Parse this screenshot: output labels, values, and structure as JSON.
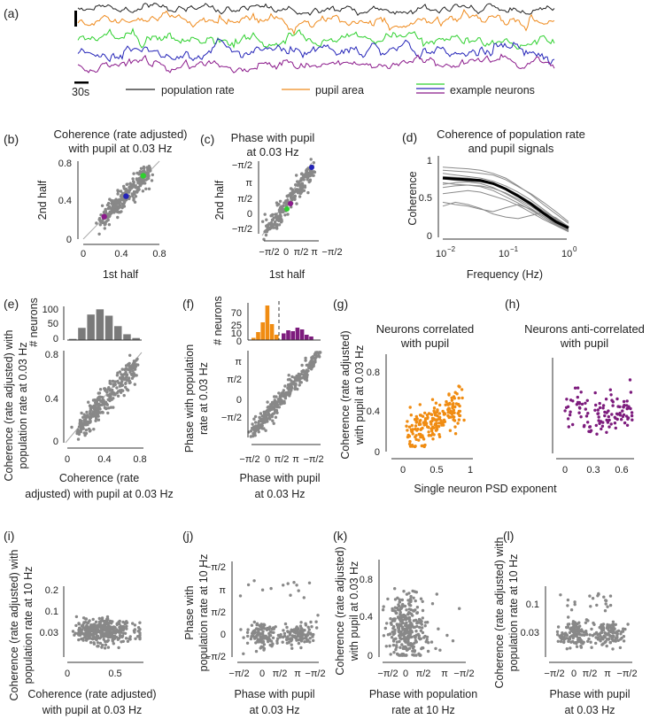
{
  "colors": {
    "population": "#222222",
    "pupil": "#ef8a1c",
    "neuron_green": "#2ed02e",
    "neuron_blue": "#2424b8",
    "neuron_purple": "#8b1a8b",
    "gray": "#888888",
    "orange": "#f08c12",
    "purple": "#7d1c7d"
  },
  "panel_a": {
    "label": "(a)",
    "scale_label": "30s",
    "legend": [
      "population rate",
      "pupil area",
      "example neurons"
    ]
  },
  "chart_data": [
    {
      "panel": "(b)",
      "type": "scatter",
      "title": [
        "Coherence (rate adjusted)",
        "with pupil at 0.03 Hz"
      ],
      "xlabel": "1st half",
      "ylabel": "2nd half",
      "xlim": [
        0,
        0.8
      ],
      "ylim": [
        0,
        0.8
      ],
      "xticks": [
        0,
        0.4,
        0.8
      ],
      "yticks": [
        0,
        0.4,
        0.8
      ],
      "highlights": [
        {
          "name": "green neuron",
          "x": 0.63,
          "y": 0.65
        },
        {
          "name": "blue neuron",
          "x": 0.45,
          "y": 0.44
        },
        {
          "name": "purple neuron",
          "x": 0.22,
          "y": 0.23
        }
      ]
    },
    {
      "panel": "(c)",
      "type": "scatter",
      "title": [
        "Phase with pupil",
        "at 0.03 Hz"
      ],
      "xlabel": "1st half",
      "ylabel": "2nd half",
      "xticks": [
        "−π/2",
        "0",
        "π/2",
        "π",
        "−π/2"
      ],
      "yticks": [
        "−π/2",
        "0",
        "π/2",
        "π",
        "−π/2"
      ],
      "xlim": [
        -1.571,
        4.712
      ],
      "ylim": [
        -1.571,
        4.712
      ]
    },
    {
      "panel": "(d)",
      "type": "line",
      "title": [
        "Coherence of population rate",
        "and pupil signals"
      ],
      "xlabel": "Frequency (Hz)",
      "ylabel": "Coherence",
      "xscale": "log",
      "xlim": [
        0.01,
        1
      ],
      "ylim": [
        0,
        1
      ],
      "xticks": [
        "10",
        "10",
        "10"
      ],
      "xtick_exponents": [
        "−2",
        "−1",
        "0"
      ],
      "yticks": [
        "0",
        "0.5",
        "1"
      ],
      "x": [
        0.01,
        0.0158,
        0.0251,
        0.0398,
        0.0631,
        0.1,
        0.158,
        0.251,
        0.398,
        0.631,
        1.0
      ],
      "mean": [
        0.76,
        0.75,
        0.74,
        0.73,
        0.69,
        0.62,
        0.53,
        0.43,
        0.31,
        0.2,
        0.12
      ],
      "series": [
        {
          "name": "s1",
          "values": [
            0.9,
            0.89,
            0.88,
            0.86,
            0.82,
            0.76,
            0.66,
            0.55,
            0.42,
            0.3,
            0.18
          ]
        },
        {
          "name": "s2",
          "values": [
            0.86,
            0.85,
            0.84,
            0.82,
            0.8,
            0.74,
            0.65,
            0.56,
            0.45,
            0.33,
            0.2
          ]
        },
        {
          "name": "s3",
          "values": [
            0.82,
            0.8,
            0.78,
            0.76,
            0.72,
            0.66,
            0.58,
            0.48,
            0.36,
            0.24,
            0.14
          ]
        },
        {
          "name": "s4",
          "values": [
            0.78,
            0.77,
            0.76,
            0.74,
            0.7,
            0.63,
            0.55,
            0.45,
            0.34,
            0.23,
            0.13
          ]
        },
        {
          "name": "s5",
          "values": [
            0.75,
            0.73,
            0.72,
            0.71,
            0.68,
            0.62,
            0.53,
            0.42,
            0.3,
            0.19,
            0.1
          ]
        },
        {
          "name": "s6",
          "values": [
            0.7,
            0.68,
            0.67,
            0.66,
            0.63,
            0.57,
            0.49,
            0.4,
            0.29,
            0.18,
            0.09
          ]
        },
        {
          "name": "s7",
          "values": [
            0.68,
            0.7,
            0.71,
            0.69,
            0.64,
            0.56,
            0.47,
            0.37,
            0.27,
            0.17,
            0.08
          ]
        },
        {
          "name": "s8",
          "values": [
            0.64,
            0.66,
            0.67,
            0.65,
            0.6,
            0.52,
            0.44,
            0.35,
            0.25,
            0.16,
            0.08
          ]
        },
        {
          "name": "s9",
          "values": [
            0.56,
            0.58,
            0.6,
            0.58,
            0.53,
            0.48,
            0.41,
            0.32,
            0.23,
            0.15,
            0.07
          ]
        },
        {
          "name": "s10",
          "values": [
            0.45,
            0.42,
            0.4,
            0.36,
            0.33,
            0.38,
            0.42,
            0.36,
            0.27,
            0.17,
            0.08
          ]
        },
        {
          "name": "s11",
          "values": [
            0.4,
            0.45,
            0.42,
            0.37,
            0.3,
            0.26,
            0.24,
            0.28,
            0.32,
            0.25,
            0.14
          ]
        }
      ]
    },
    {
      "panel": "(e)",
      "type": "scatter",
      "xlabel": [
        "Coherence (rate",
        "adjusted) with pupil at 0.03 Hz"
      ],
      "ylabel": [
        "Coherence (rate adjusted) with",
        "population rate at 0.03 Hz"
      ],
      "xlim": [
        0,
        0.8
      ],
      "ylim": [
        0,
        0.8
      ],
      "xticks": [
        0,
        0.4,
        0.8
      ],
      "yticks": [
        0,
        0.4,
        0.8
      ],
      "histogram": {
        "ylabel": "# neurons",
        "yticks": [
          0,
          50,
          100
        ],
        "bins": [
          0.05,
          0.15,
          0.25,
          0.35,
          0.45,
          0.55,
          0.65,
          0.75
        ],
        "counts": [
          4,
          42,
          88,
          106,
          84,
          48,
          20,
          7
        ]
      }
    },
    {
      "panel": "(f)",
      "type": "scatter",
      "xlabel": [
        "Phase with pupil",
        "at 0.03 Hz"
      ],
      "ylabel": [
        "Phase with population",
        "rate at 0.03 Hz"
      ],
      "xticks": [
        "−π/2",
        "0",
        "π/2",
        "π",
        "−π/2"
      ],
      "yticks": [
        "−π/2",
        "0",
        "π/2",
        "π"
      ],
      "histogram": {
        "ylabel": "# neurons",
        "yticks": [
          0,
          10,
          25,
          70
        ],
        "orange_counts": [
          5,
          18,
          40,
          78,
          36,
          12
        ],
        "purple_counts": [
          15,
          22,
          20,
          28,
          24,
          12,
          8
        ]
      }
    },
    {
      "panel": "(g)",
      "type": "scatter",
      "title": [
        "Neurons correlated",
        "with pupil"
      ],
      "xlim": [
        -0.1,
        1.05
      ],
      "ylim": [
        0,
        0.85
      ],
      "xticks": [
        0,
        0.5,
        1
      ],
      "yticks": [
        0,
        0.4,
        0.8
      ]
    },
    {
      "panel": "(h)",
      "type": "scatter",
      "title": [
        "Neurons anti-correlated",
        "with pupil"
      ],
      "xlim": [
        -0.15,
        0.75
      ],
      "ylim": [
        0,
        0.85
      ],
      "xticks": [
        0,
        0.3,
        0.6
      ]
    },
    {
      "panel": "(g-h)",
      "ylabel": [
        "Coherence (rate adjusted)",
        "with pupil at 0.03 Hz"
      ],
      "xlabel": "Single neuron PSD exponent"
    },
    {
      "panel": "(i)",
      "type": "scatter",
      "xlabel": [
        "Coherence (rate adjusted)",
        "with pupil at 0.03 Hz"
      ],
      "ylabel": [
        "Coherence (rate adjusted) with",
        "population rate at 10 Hz"
      ],
      "xlim": [
        0,
        0.8
      ],
      "ylim": [
        0,
        0.22
      ],
      "xticks": [
        0,
        0.5
      ],
      "yticks": [
        0.03,
        0.1,
        0.2
      ]
    },
    {
      "panel": "(j)",
      "type": "scatter",
      "xlabel": [
        "Phase with pupil",
        "at 0.03 Hz"
      ],
      "ylabel": [
        "Phase with",
        "population rate at 10 Hz"
      ],
      "xticks": [
        "−π/2",
        "0",
        "π/2",
        "π",
        "−π/2"
      ],
      "yticks": [
        "−π/2",
        "0",
        "π/2",
        "π",
        "−π/2"
      ]
    },
    {
      "panel": "(k)",
      "type": "scatter",
      "xlabel": [
        "Phase with population",
        "rate at 10 Hz"
      ],
      "ylabel": [
        "Coherence (rate adjusted)",
        "with pupil at 0.03 Hz"
      ],
      "xticks": [
        "−π/2",
        "0",
        "π/2",
        "π",
        "−π/2"
      ],
      "yticks": [
        0,
        0.4,
        0.8
      ],
      "ylim": [
        0,
        0.8
      ]
    },
    {
      "panel": "(l)",
      "type": "scatter",
      "xlabel": [
        "Phase with pupil",
        "at 0.03 Hz"
      ],
      "ylabel": [
        "Coherence (rate adjusted) with",
        "population rate at 10 Hz"
      ],
      "xticks": [
        "−π/2",
        "0",
        "π/2",
        "π",
        "−π/2"
      ],
      "yticks": [
        0.03,
        0.1
      ],
      "ylim": [
        0,
        0.13
      ]
    }
  ]
}
